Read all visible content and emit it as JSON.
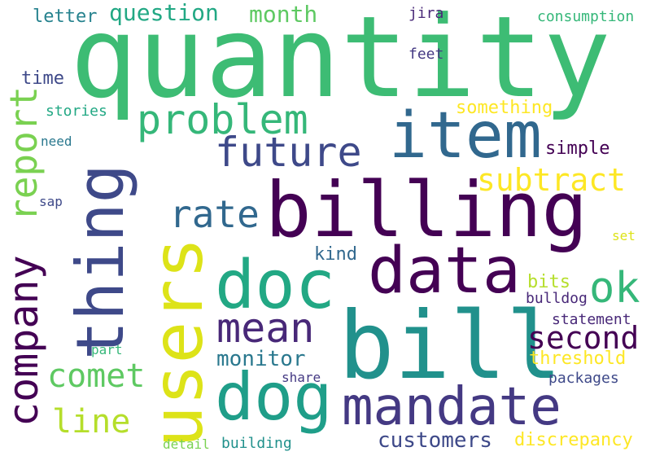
{
  "words": [
    {
      "text": "quantity",
      "color": "#3dbc74"
    },
    {
      "text": "users",
      "color": "#dde318"
    },
    {
      "text": "billing",
      "color": "#440154"
    },
    {
      "text": "bill",
      "color": "#21918c"
    },
    {
      "text": "item",
      "color": "#31688e"
    },
    {
      "text": "data",
      "color": "#440154"
    },
    {
      "text": "thing",
      "color": "#3e4989"
    },
    {
      "text": "doc",
      "color": "#22a884"
    },
    {
      "text": "dog",
      "color": "#1f9e89"
    },
    {
      "text": "mandate",
      "color": "#443983"
    },
    {
      "text": "future",
      "color": "#3e4989"
    },
    {
      "text": "problem",
      "color": "#35b779"
    },
    {
      "text": "report",
      "color": "#7ad151"
    },
    {
      "text": "company",
      "color": "#440154"
    },
    {
      "text": "ok",
      "color": "#35b779"
    },
    {
      "text": "mean",
      "color": "#482878"
    },
    {
      "text": "second",
      "color": "#440154"
    },
    {
      "text": "rate",
      "color": "#31688e"
    },
    {
      "text": "subtract",
      "color": "#fde725"
    },
    {
      "text": "comet",
      "color": "#5ec962"
    },
    {
      "text": "line",
      "color": "#b5de2b"
    },
    {
      "text": "monitor",
      "color": "#2a788e"
    },
    {
      "text": "question",
      "color": "#22a884"
    },
    {
      "text": "month",
      "color": "#5ec962"
    },
    {
      "text": "letter",
      "color": "#26828e"
    },
    {
      "text": "customers",
      "color": "#3e4989"
    },
    {
      "text": "something",
      "color": "#fde725"
    },
    {
      "text": "simple",
      "color": "#440154"
    },
    {
      "text": "threshold",
      "color": "#fde725"
    },
    {
      "text": "discrepancy",
      "color": "#fde725"
    },
    {
      "text": "statement",
      "color": "#482878"
    },
    {
      "text": "bits",
      "color": "#b5de2b"
    },
    {
      "text": "bulldog",
      "color": "#482878"
    },
    {
      "text": "packages",
      "color": "#3e4989"
    },
    {
      "text": "time",
      "color": "#3e4989"
    },
    {
      "text": "kind",
      "color": "#31688e"
    },
    {
      "text": "jira",
      "color": "#482878"
    },
    {
      "text": "feet",
      "color": "#443983"
    },
    {
      "text": "consumption",
      "color": "#35b779"
    },
    {
      "text": "stories",
      "color": "#22a884"
    },
    {
      "text": "need",
      "color": "#2a788e"
    },
    {
      "text": "sap",
      "color": "#3e4989"
    },
    {
      "text": "part",
      "color": "#35b779"
    },
    {
      "text": "share",
      "color": "#443983"
    },
    {
      "text": "building",
      "color": "#21918c"
    },
    {
      "text": "detail",
      "color": "#7ad151"
    },
    {
      "text": "set",
      "color": "#dde318"
    }
  ]
}
